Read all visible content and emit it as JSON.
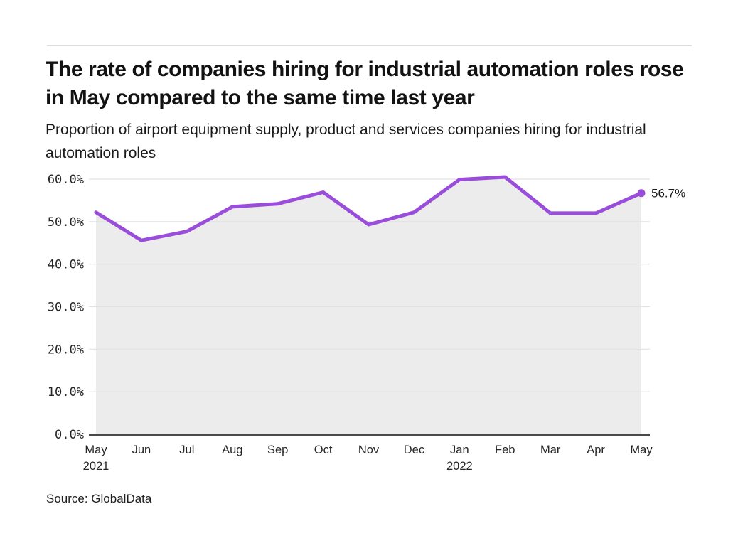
{
  "header": {
    "title": "The rate of companies hiring for industrial automation roles rose in May compared to the same time last year",
    "subtitle": "Proportion of airport equipment supply, product and services companies hiring for industrial automation roles"
  },
  "source": {
    "label": "Source: GlobalData"
  },
  "chart_data": {
    "type": "line",
    "title": "The rate of companies hiring for industrial automation roles rose in May compared to the same time last year",
    "subtitle": "Proportion of airport equipment supply, product and services companies hiring for industrial automation roles",
    "x_labels": [
      {
        "label": "May",
        "sublabel": "2021"
      },
      {
        "label": "Jun"
      },
      {
        "label": "Jul"
      },
      {
        "label": "Aug"
      },
      {
        "label": "Sep"
      },
      {
        "label": "Oct"
      },
      {
        "label": "Nov"
      },
      {
        "label": "Dec"
      },
      {
        "label": "Jan",
        "sublabel": "2022"
      },
      {
        "label": "Feb"
      },
      {
        "label": "Mar"
      },
      {
        "label": "Apr"
      },
      {
        "label": "May"
      }
    ],
    "values": [
      52.2,
      45.6,
      47.7,
      53.5,
      54.2,
      56.9,
      49.3,
      52.2,
      59.9,
      60.5,
      52.0,
      52.0,
      56.7
    ],
    "yticks": [
      {
        "value": 0,
        "label": "0.0%"
      },
      {
        "value": 10,
        "label": "10.0%"
      },
      {
        "value": 20,
        "label": "20.0%"
      },
      {
        "value": 30,
        "label": "30.0%"
      },
      {
        "value": 40,
        "label": "40.0%"
      },
      {
        "value": 50,
        "label": "50.0%"
      },
      {
        "value": 60,
        "label": "60.0%"
      }
    ],
    "ylim": [
      0,
      60
    ],
    "grid": "horizontal",
    "legend": "none",
    "end_annotation": "56.7%",
    "line_color": "#9a4ddb",
    "area_fill_color": "#ececec",
    "gridline_color": "#e2e2e2",
    "axis_line_color": "#4a4a4a",
    "tick_text_color": "#262626"
  }
}
